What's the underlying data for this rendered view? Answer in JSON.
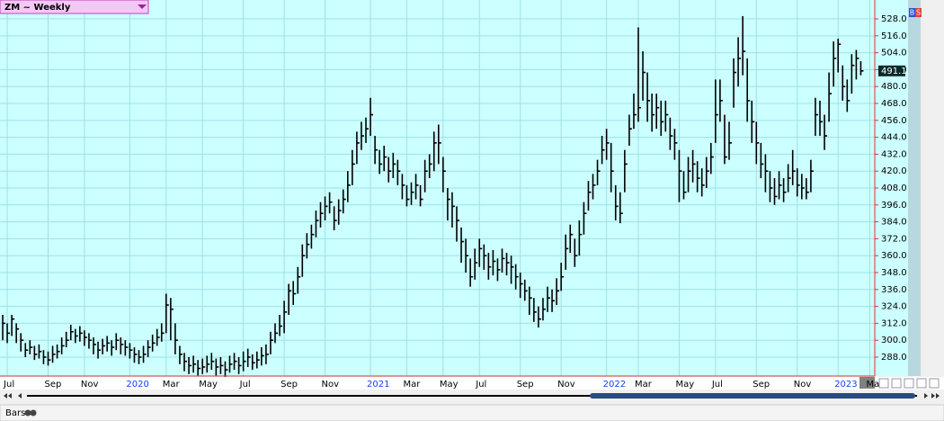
{
  "chart_data": {
    "type": "hlc",
    "title": "ZM ~ Weekly",
    "categories": [
      null,
      "Jul",
      null,
      null,
      null,
      null,
      null,
      null,
      null,
      null,
      "Sep",
      null,
      null,
      null,
      null,
      null,
      null,
      null,
      "Nov",
      null,
      null,
      null,
      null,
      null,
      null,
      null,
      null,
      null,
      "2020",
      null,
      null,
      null,
      null,
      null,
      null,
      null,
      "Mar",
      null,
      null,
      null,
      null,
      null,
      null,
      null,
      "May",
      null,
      null,
      null,
      null,
      null,
      null,
      null,
      null,
      "Jul",
      null,
      null,
      null,
      null,
      null,
      null,
      null,
      null,
      "Sep",
      null,
      null,
      null,
      null,
      null,
      null,
      null,
      null,
      "Nov",
      null,
      null,
      null,
      null,
      null,
      null,
      null,
      null,
      null,
      "2021",
      null,
      null,
      null,
      null,
      null,
      null,
      null,
      "Mar",
      null,
      null,
      null,
      null,
      null,
      null,
      null,
      "May",
      null,
      null,
      null,
      null,
      null,
      null,
      null,
      "Jul",
      null,
      null,
      null,
      null,
      null,
      null,
      null,
      null,
      "Sep",
      null,
      null,
      null,
      null,
      null,
      null,
      null,
      null,
      "Nov",
      null,
      null,
      null,
      null,
      null,
      null,
      null,
      null,
      null,
      "2022",
      null,
      null,
      null,
      null,
      null,
      null,
      "Mar",
      null,
      null,
      null,
      null,
      null,
      null,
      null,
      null,
      "May",
      null,
      null,
      null,
      null,
      null,
      null,
      null,
      "Jul",
      null,
      null,
      null,
      null,
      null,
      null,
      null,
      null,
      "Sep",
      null,
      null,
      null,
      null,
      null,
      null,
      null,
      null,
      "Nov",
      null,
      null,
      null,
      null,
      null,
      null,
      null,
      null,
      "2023",
      null,
      null,
      null,
      null,
      null,
      null,
      "Ma"
    ],
    "series": [
      {
        "color": "#000000",
        "high": [
          318,
          312,
          318,
          312,
          305,
          298,
          300,
          296,
          297,
          293,
          292,
          296,
          297,
          302,
          306,
          311,
          308,
          310,
          307,
          305,
          302,
          299,
          301,
          303,
          300,
          305,
          302,
          300,
          298,
          295,
          293,
          296,
          300,
          304,
          308,
          312,
          333,
          330,
          312,
          296,
          291,
          288,
          289,
          286,
          287,
          289,
          291,
          287,
          288,
          285,
          289,
          291,
          288,
          292,
          294,
          290,
          292,
          295,
          297,
          306,
          312,
          318,
          328,
          340,
          342,
          352,
          368,
          376,
          382,
          392,
          398,
          402,
          405,
          395,
          400,
          407,
          420,
          435,
          448,
          455,
          458,
          472,
          445,
          435,
          438,
          430,
          433,
          428,
          418,
          410,
          412,
          418,
          410,
          428,
          432,
          448,
          453,
          430,
          408,
          405,
          395,
          380,
          372,
          358,
          365,
          372,
          368,
          362,
          364,
          358,
          365,
          362,
          360,
          354,
          348,
          343,
          338,
          330,
          324,
          330,
          338,
          336,
          344,
          355,
          375,
          382,
          372,
          385,
          398,
          413,
          418,
          428,
          445,
          450,
          440,
          410,
          405,
          435,
          460,
          475,
          522,
          505,
          490,
          475,
          475,
          470,
          470,
          458,
          450,
          435,
          420,
          430,
          435,
          427,
          422,
          430,
          440,
          485,
          485,
          460,
          455,
          500,
          515,
          530,
          500,
          470,
          455,
          440,
          432,
          420,
          415,
          420,
          415,
          425,
          435,
          422,
          418,
          415,
          428,
          472,
          470,
          460,
          490,
          512,
          514,
          495,
          485,
          503,
          506,
          498,
          null,
          null
        ],
        "low": [
          300,
          298,
          303,
          298,
          292,
          288,
          290,
          286,
          287,
          283,
          282,
          284,
          287,
          290,
          295,
          300,
          298,
          299,
          296,
          294,
          290,
          287,
          290,
          292,
          289,
          293,
          290,
          289,
          287,
          284,
          283,
          284,
          288,
          292,
          296,
          299,
          305,
          300,
          290,
          283,
          278,
          276,
          277,
          275,
          276,
          277,
          279,
          275,
          276,
          274,
          277,
          279,
          276,
          278,
          281,
          279,
          280,
          282,
          283,
          290,
          298,
          303,
          305,
          318,
          325,
          333,
          345,
          358,
          365,
          373,
          380,
          385,
          390,
          378,
          382,
          390,
          398,
          410,
          425,
          435,
          440,
          445,
          425,
          418,
          420,
          412,
          415,
          410,
          400,
          395,
          396,
          400,
          395,
          405,
          415,
          420,
          425,
          405,
          385,
          380,
          370,
          355,
          348,
          338,
          343,
          352,
          350,
          343,
          346,
          342,
          348,
          346,
          340,
          336,
          330,
          328,
          318,
          313,
          309,
          314,
          320,
          320,
          325,
          335,
          350,
          362,
          352,
          360,
          375,
          392,
          400,
          410,
          425,
          428,
          405,
          385,
          383,
          405,
          438,
          450,
          455,
          470,
          455,
          448,
          450,
          445,
          448,
          435,
          428,
          398,
          400,
          405,
          412,
          405,
          402,
          408,
          418,
          440,
          455,
          425,
          428,
          465,
          480,
          488,
          455,
          440,
          425,
          415,
          405,
          398,
          396,
          400,
          398,
          405,
          410,
          402,
          400,
          400,
          405,
          445,
          445,
          435,
          455,
          480,
          490,
          470,
          462,
          475,
          485,
          488,
          null,
          null
        ],
        "close": [
          312,
          305,
          315,
          308,
          300,
          293,
          295,
          290,
          292,
          288,
          286,
          290,
          292,
          296,
          300,
          306,
          303,
          305,
          302,
          300,
          297,
          293,
          296,
          298,
          295,
          300,
          297,
          295,
          293,
          290,
          288,
          290,
          295,
          298,
          302,
          305,
          325,
          322,
          300,
          290,
          285,
          282,
          283,
          280,
          281,
          283,
          285,
          281,
          282,
          279,
          283,
          285,
          282,
          285,
          288,
          284,
          286,
          289,
          290,
          300,
          305,
          310,
          320,
          335,
          333,
          345,
          360,
          368,
          375,
          385,
          390,
          395,
          398,
          385,
          392,
          400,
          410,
          425,
          440,
          445,
          450,
          460,
          435,
          425,
          430,
          420,
          425,
          420,
          410,
          400,
          405,
          410,
          400,
          420,
          425,
          440,
          440,
          420,
          400,
          395,
          385,
          370,
          360,
          345,
          355,
          365,
          360,
          352,
          356,
          350,
          358,
          355,
          352,
          345,
          340,
          335,
          330,
          320,
          315,
          322,
          330,
          328,
          335,
          345,
          365,
          375,
          360,
          375,
          390,
          405,
          410,
          420,
          435,
          440,
          420,
          395,
          390,
          425,
          450,
          460,
          465,
          490,
          470,
          460,
          465,
          455,
          460,
          445,
          440,
          420,
          405,
          420,
          425,
          415,
          410,
          420,
          430,
          460,
          470,
          430,
          440,
          490,
          500,
          505,
          470,
          455,
          440,
          425,
          420,
          408,
          402,
          410,
          405,
          415,
          420,
          410,
          408,
          405,
          420,
          460,
          455,
          445,
          475,
          500,
          510,
          480,
          470,
          495,
          500,
          491.1,
          null,
          null
        ]
      }
    ],
    "ylim": [
      274.6,
      539.5
    ],
    "yticks": [
      {
        "value": 288,
        "label": "288.0"
      },
      {
        "value": 300,
        "label": "300.0"
      },
      {
        "value": 312,
        "label": "312.0"
      },
      {
        "value": 324,
        "label": "324.0"
      },
      {
        "value": 336,
        "label": "336.0"
      },
      {
        "value": 348,
        "label": "348.0"
      },
      {
        "value": 360,
        "label": "360.0"
      },
      {
        "value": 372,
        "label": "372.0"
      },
      {
        "value": 384,
        "label": "384.0"
      },
      {
        "value": 396,
        "label": "396.0"
      },
      {
        "value": 408,
        "label": "408.0"
      },
      {
        "value": 420,
        "label": "420.0"
      },
      {
        "value": 432,
        "label": "432.0"
      },
      {
        "value": 444,
        "label": "444.0"
      },
      {
        "value": 456,
        "label": "456.0"
      },
      {
        "value": 468,
        "label": "468.0"
      },
      {
        "value": 480,
        "label": "480.0"
      },
      {
        "value": 492,
        "label": "492.0"
      },
      {
        "value": 504,
        "label": "504.0"
      },
      {
        "value": 516,
        "label": "516.0"
      },
      {
        "value": 528,
        "label": "528.0"
      }
    ],
    "grid": true
  },
  "ui": {
    "panel_label": "Bars",
    "buy": "B",
    "sell": "S"
  }
}
